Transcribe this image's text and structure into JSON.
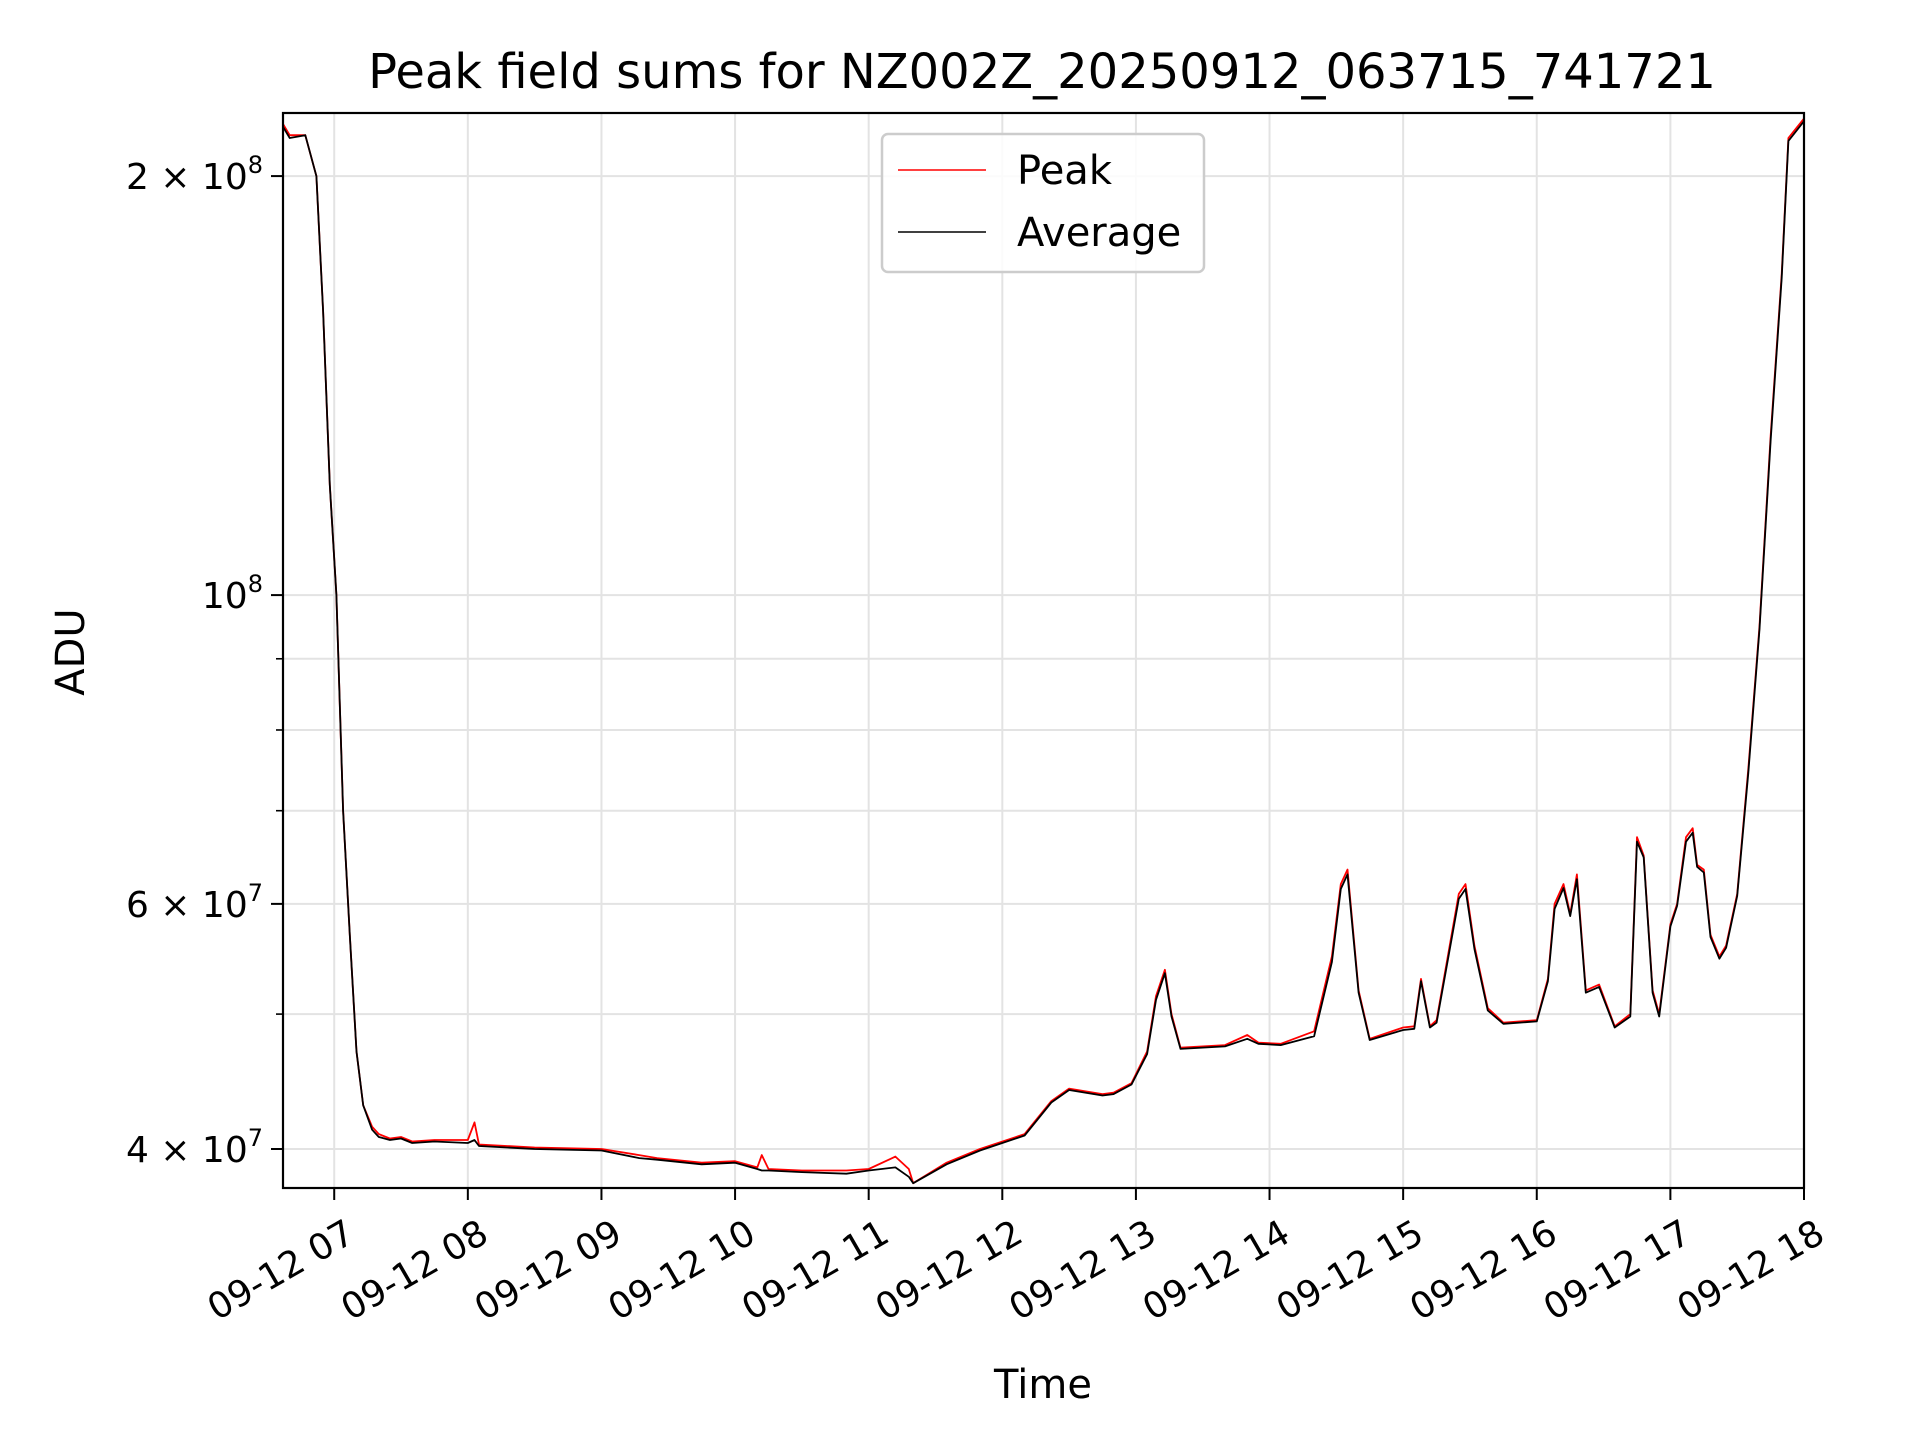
{
  "chart_data": {
    "type": "line",
    "title": "Peak field sums for NZ002Z_20250912_063715_741721",
    "xlabel": "Time",
    "ylabel": "ADU",
    "y_scale": "log",
    "grid": true,
    "legend_position": "top-center",
    "xlim": [
      "2025-09-12 06:37",
      "2025-09-12 18:00"
    ],
    "ylim": [
      37500000,
      222000000
    ],
    "x_ticks": [
      {
        "value": "2025-09-12 07:00",
        "label": "09-12 07"
      },
      {
        "value": "2025-09-12 08:00",
        "label": "09-12 08"
      },
      {
        "value": "2025-09-12 09:00",
        "label": "09-12 09"
      },
      {
        "value": "2025-09-12 10:00",
        "label": "09-12 10"
      },
      {
        "value": "2025-09-12 11:00",
        "label": "09-12 11"
      },
      {
        "value": "2025-09-12 12:00",
        "label": "09-12 12"
      },
      {
        "value": "2025-09-12 13:00",
        "label": "09-12 13"
      },
      {
        "value": "2025-09-12 14:00",
        "label": "09-12 14"
      },
      {
        "value": "2025-09-12 15:00",
        "label": "09-12 15"
      },
      {
        "value": "2025-09-12 16:00",
        "label": "09-12 16"
      },
      {
        "value": "2025-09-12 17:00",
        "label": "09-12 17"
      },
      {
        "value": "2025-09-12 18:00",
        "label": "09-12 18"
      }
    ],
    "y_major_ticks": [
      {
        "value": 40000000,
        "mantissa": "4",
        "times": "×",
        "base": "10",
        "exp": "7"
      },
      {
        "value": 60000000,
        "mantissa": "6",
        "times": "×",
        "base": "10",
        "exp": "7"
      },
      {
        "value": 100000000,
        "mantissa": "",
        "times": "",
        "base": "10",
        "exp": "8"
      },
      {
        "value": 200000000,
        "mantissa": "2",
        "times": "×",
        "base": "10",
        "exp": "8"
      }
    ],
    "y_minor_ticks": [
      50000000,
      70000000,
      80000000,
      90000000
    ],
    "series": [
      {
        "name": "Peak",
        "color": "#ff0000",
        "x": [
          "2025-09-12 06:37",
          "2025-09-12 06:40",
          "2025-09-12 06:47",
          "2025-09-12 06:52",
          "2025-09-12 06:55",
          "2025-09-12 06:58",
          "2025-09-12 07:01",
          "2025-09-12 07:04",
          "2025-09-12 07:07",
          "2025-09-12 07:10",
          "2025-09-12 07:13",
          "2025-09-12 07:17",
          "2025-09-12 07:20",
          "2025-09-12 07:25",
          "2025-09-12 07:30",
          "2025-09-12 07:35",
          "2025-09-12 07:45",
          "2025-09-12 08:00",
          "2025-09-12 08:03",
          "2025-09-12 08:05",
          "2025-09-12 08:30",
          "2025-09-12 09:00",
          "2025-09-12 09:17",
          "2025-09-12 09:25",
          "2025-09-12 09:45",
          "2025-09-12 10:00",
          "2025-09-12 10:10",
          "2025-09-12 10:12",
          "2025-09-12 10:15",
          "2025-09-12 10:30",
          "2025-09-12 10:50",
          "2025-09-12 11:00",
          "2025-09-12 11:12",
          "2025-09-12 11:18",
          "2025-09-12 11:20",
          "2025-09-12 11:35",
          "2025-09-12 11:50",
          "2025-09-12 12:10",
          "2025-09-12 12:22",
          "2025-09-12 12:30",
          "2025-09-12 12:45",
          "2025-09-12 12:50",
          "2025-09-12 12:58",
          "2025-09-12 13:05",
          "2025-09-12 13:09",
          "2025-09-12 13:13",
          "2025-09-12 13:16",
          "2025-09-12 13:20",
          "2025-09-12 13:40",
          "2025-09-12 13:50",
          "2025-09-12 13:55",
          "2025-09-12 14:05",
          "2025-09-12 14:20",
          "2025-09-12 14:28",
          "2025-09-12 14:32",
          "2025-09-12 14:35",
          "2025-09-12 14:40",
          "2025-09-12 14:45",
          "2025-09-12 15:00",
          "2025-09-12 15:05",
          "2025-09-12 15:08",
          "2025-09-12 15:12",
          "2025-09-12 15:15",
          "2025-09-12 15:25",
          "2025-09-12 15:28",
          "2025-09-12 15:32",
          "2025-09-12 15:38",
          "2025-09-12 15:45",
          "2025-09-12 16:00",
          "2025-09-12 16:05",
          "2025-09-12 16:08",
          "2025-09-12 16:12",
          "2025-09-12 16:15",
          "2025-09-12 16:18",
          "2025-09-12 16:22",
          "2025-09-12 16:28",
          "2025-09-12 16:35",
          "2025-09-12 16:42",
          "2025-09-12 16:45",
          "2025-09-12 16:48",
          "2025-09-12 16:52",
          "2025-09-12 16:55",
          "2025-09-12 17:00",
          "2025-09-12 17:03",
          "2025-09-12 17:07",
          "2025-09-12 17:10",
          "2025-09-12 17:12",
          "2025-09-12 17:15",
          "2025-09-12 17:18",
          "2025-09-12 17:22",
          "2025-09-12 17:25",
          "2025-09-12 17:30",
          "2025-09-12 17:35",
          "2025-09-12 17:40",
          "2025-09-12 17:45",
          "2025-09-12 17:50",
          "2025-09-12 17:53",
          "2025-09-12 18:00"
        ],
        "y": [
          218000000,
          214000000,
          214000000,
          200000000,
          160000000,
          120000000,
          100000000,
          70000000,
          57000000,
          47000000,
          43000000,
          41500000,
          41000000,
          40700000,
          40800000,
          40500000,
          40600000,
          40600000,
          41800000,
          40300000,
          40100000,
          40000000,
          39600000,
          39400000,
          39100000,
          39200000,
          38800000,
          39600000,
          38700000,
          38600000,
          38600000,
          38700000,
          39500000,
          38700000,
          37800000,
          39100000,
          40000000,
          41000000,
          43300000,
          44200000,
          43800000,
          43900000,
          44600000,
          47000000,
          51500000,
          53800000,
          50000000,
          47300000,
          47500000,
          48300000,
          47700000,
          47600000,
          48600000,
          55000000,
          62000000,
          63500000,
          52000000,
          48000000,
          48900000,
          49000000,
          53000000,
          49000000,
          49500000,
          61000000,
          62000000,
          56000000,
          50500000,
          49300000,
          49500000,
          53000000,
          60000000,
          62000000,
          59000000,
          63000000,
          52000000,
          52500000,
          49000000,
          50000000,
          67000000,
          65000000,
          52000000,
          50000000,
          58000000,
          60000000,
          67000000,
          68000000,
          64000000,
          63500000,
          57000000,
          55000000,
          56000000,
          61000000,
          75000000,
          95000000,
          130000000,
          170000000,
          213000000,
          220000000
        ]
      },
      {
        "name": "Average",
        "color": "#000000",
        "x": [
          "2025-09-12 06:37",
          "2025-09-12 06:40",
          "2025-09-12 06:47",
          "2025-09-12 06:52",
          "2025-09-12 06:55",
          "2025-09-12 06:58",
          "2025-09-12 07:01",
          "2025-09-12 07:04",
          "2025-09-12 07:07",
          "2025-09-12 07:10",
          "2025-09-12 07:13",
          "2025-09-12 07:17",
          "2025-09-12 07:20",
          "2025-09-12 07:25",
          "2025-09-12 07:30",
          "2025-09-12 07:35",
          "2025-09-12 07:45",
          "2025-09-12 08:00",
          "2025-09-12 08:03",
          "2025-09-12 08:05",
          "2025-09-12 08:30",
          "2025-09-12 09:00",
          "2025-09-12 09:17",
          "2025-09-12 09:25",
          "2025-09-12 09:45",
          "2025-09-12 10:00",
          "2025-09-12 10:10",
          "2025-09-12 10:12",
          "2025-09-12 10:15",
          "2025-09-12 10:30",
          "2025-09-12 10:50",
          "2025-09-12 11:00",
          "2025-09-12 11:12",
          "2025-09-12 11:18",
          "2025-09-12 11:20",
          "2025-09-12 11:35",
          "2025-09-12 11:50",
          "2025-09-12 12:10",
          "2025-09-12 12:22",
          "2025-09-12 12:30",
          "2025-09-12 12:45",
          "2025-09-12 12:50",
          "2025-09-12 12:58",
          "2025-09-12 13:05",
          "2025-09-12 13:09",
          "2025-09-12 13:13",
          "2025-09-12 13:16",
          "2025-09-12 13:20",
          "2025-09-12 13:40",
          "2025-09-12 13:50",
          "2025-09-12 13:55",
          "2025-09-12 14:05",
          "2025-09-12 14:20",
          "2025-09-12 14:28",
          "2025-09-12 14:32",
          "2025-09-12 14:35",
          "2025-09-12 14:40",
          "2025-09-12 14:45",
          "2025-09-12 15:00",
          "2025-09-12 15:05",
          "2025-09-12 15:08",
          "2025-09-12 15:12",
          "2025-09-12 15:15",
          "2025-09-12 15:25",
          "2025-09-12 15:28",
          "2025-09-12 15:32",
          "2025-09-12 15:38",
          "2025-09-12 15:45",
          "2025-09-12 16:00",
          "2025-09-12 16:05",
          "2025-09-12 16:08",
          "2025-09-12 16:12",
          "2025-09-12 16:15",
          "2025-09-12 16:18",
          "2025-09-12 16:22",
          "2025-09-12 16:28",
          "2025-09-12 16:35",
          "2025-09-12 16:42",
          "2025-09-12 16:45",
          "2025-09-12 16:48",
          "2025-09-12 16:52",
          "2025-09-12 16:55",
          "2025-09-12 17:00",
          "2025-09-12 17:03",
          "2025-09-12 17:07",
          "2025-09-12 17:10",
          "2025-09-12 17:12",
          "2025-09-12 17:15",
          "2025-09-12 17:18",
          "2025-09-12 17:22",
          "2025-09-12 17:25",
          "2025-09-12 17:30",
          "2025-09-12 17:35",
          "2025-09-12 17:40",
          "2025-09-12 17:45",
          "2025-09-12 17:50",
          "2025-09-12 17:53",
          "2025-09-12 18:00"
        ],
        "y": [
          217000000,
          213000000,
          214000000,
          200000000,
          160000000,
          120000000,
          100000000,
          70000000,
          57000000,
          47000000,
          43000000,
          41300000,
          40800000,
          40600000,
          40700000,
          40400000,
          40500000,
          40400000,
          40600000,
          40200000,
          40000000,
          39900000,
          39400000,
          39300000,
          39000000,
          39100000,
          38700000,
          38600000,
          38600000,
          38500000,
          38400000,
          38600000,
          38800000,
          38200000,
          37800000,
          39000000,
          39900000,
          40900000,
          43200000,
          44100000,
          43700000,
          43800000,
          44500000,
          46800000,
          51200000,
          53500000,
          49800000,
          47200000,
          47400000,
          48000000,
          47600000,
          47500000,
          48200000,
          54500000,
          61500000,
          63000000,
          51800000,
          47900000,
          48700000,
          48800000,
          52800000,
          48900000,
          49300000,
          60500000,
          61500000,
          55700000,
          50300000,
          49200000,
          49400000,
          52800000,
          59500000,
          61600000,
          58800000,
          62500000,
          51800000,
          52300000,
          48900000,
          49800000,
          66500000,
          64800000,
          51800000,
          49800000,
          57800000,
          59800000,
          66500000,
          67500000,
          63800000,
          63200000,
          56800000,
          54800000,
          55800000,
          60800000,
          74500000,
          94500000,
          129000000,
          169000000,
          212000000,
          219000000
        ]
      }
    ]
  }
}
